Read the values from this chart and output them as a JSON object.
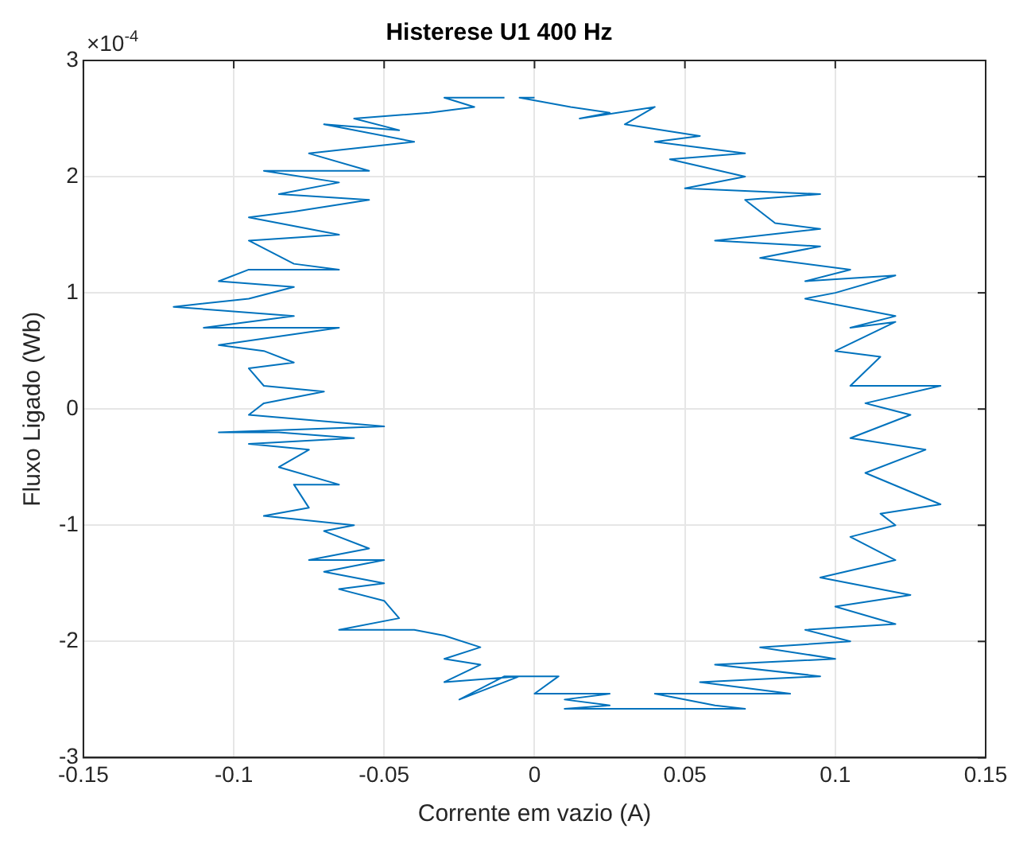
{
  "chart_data": {
    "type": "line",
    "legend": false,
    "title": "Histerese U1 400 Hz",
    "xlabel": "Corrente em vazio (A)",
    "ylabel": "Fluxo Ligado (Wb)",
    "annotations": [
      "×10$^{-4}$"
    ],
    "x": [
      0,
      -0.005,
      0.012,
      0.025,
      0.015,
      0.04,
      0.03,
      0.055,
      0.04,
      0.07,
      0.045,
      0.07,
      0.05,
      0.095,
      0.07,
      0.08,
      0.095,
      0.06,
      0.095,
      0.075,
      0.105,
      0.09,
      0.12,
      0.1,
      0.09,
      0.12,
      0.105,
      0.12,
      0.1,
      0.115,
      0.105,
      0.135,
      0.11,
      0.125,
      0.105,
      0.13,
      0.11,
      0.135,
      0.115,
      0.12,
      0.105,
      0.12,
      0.095,
      0.125,
      0.1,
      0.12,
      0.09,
      0.105,
      0.075,
      0.1,
      0.06,
      0.095,
      0.055,
      0.085,
      0.04,
      0.06,
      0.07,
      0.01,
      0.025,
      0.01,
      0.025,
      0,
      0.008,
      -0.01,
      -0.025,
      -0.005,
      -0.03,
      -0.018,
      -0.03,
      -0.018,
      -0.03,
      -0.04,
      -0.065,
      -0.045,
      -0.05,
      -0.065,
      -0.05,
      -0.07,
      -0.05,
      -0.075,
      -0.055,
      -0.07,
      -0.06,
      -0.09,
      -0.075,
      -0.08,
      -0.065,
      -0.085,
      -0.075,
      -0.095,
      -0.06,
      -0.085,
      -0.105,
      -0.05,
      -0.095,
      -0.09,
      -0.07,
      -0.09,
      -0.095,
      -0.08,
      -0.09,
      -0.105,
      -0.065,
      -0.11,
      -0.08,
      -0.12,
      -0.095,
      -0.08,
      -0.105,
      -0.095,
      -0.065,
      -0.08,
      -0.095,
      -0.065,
      -0.095,
      -0.08,
      -0.055,
      -0.085,
      -0.065,
      -0.09,
      -0.055,
      -0.075,
      -0.04,
      -0.07,
      -0.045,
      -0.06,
      -0.035,
      -0.02,
      -0.03,
      -0.01
    ],
    "series": [
      {
        "color": "#0072bd",
        "values": [
          2.68,
          2.68,
          2.6,
          2.55,
          2.5,
          2.6,
          2.45,
          2.35,
          2.3,
          2.2,
          2.15,
          2.0,
          1.9,
          1.85,
          1.8,
          1.6,
          1.55,
          1.45,
          1.4,
          1.3,
          1.2,
          1.1,
          1.15,
          1.0,
          0.95,
          0.8,
          0.7,
          0.75,
          0.5,
          0.45,
          0.2,
          0.2,
          0.05,
          -0.05,
          -0.25,
          -0.35,
          -0.55,
          -0.82,
          -0.9,
          -1.0,
          -1.1,
          -1.3,
          -1.45,
          -1.6,
          -1.7,
          -1.85,
          -1.9,
          -2.0,
          -2.05,
          -2.15,
          -2.2,
          -2.3,
          -2.35,
          -2.45,
          -2.45,
          -2.55,
          -2.58,
          -2.58,
          -2.55,
          -2.5,
          -2.45,
          -2.45,
          -2.3,
          -2.3,
          -2.5,
          -2.3,
          -2.35,
          -2.2,
          -2.15,
          -2.05,
          -1.95,
          -1.9,
          -1.9,
          -1.8,
          -1.65,
          -1.55,
          -1.5,
          -1.4,
          -1.3,
          -1.3,
          -1.2,
          -1.05,
          -1.0,
          -0.92,
          -0.85,
          -0.65,
          -0.65,
          -0.5,
          -0.35,
          -0.3,
          -0.25,
          -0.2,
          -0.2,
          -0.15,
          -0.05,
          0.05,
          0.15,
          0.2,
          0.35,
          0.4,
          0.5,
          0.55,
          0.7,
          0.7,
          0.8,
          0.88,
          0.95,
          1.05,
          1.1,
          1.2,
          1.2,
          1.25,
          1.45,
          1.5,
          1.65,
          1.7,
          1.8,
          1.85,
          1.95,
          2.05,
          2.05,
          2.2,
          2.3,
          2.45,
          2.4,
          2.5,
          2.55,
          2.6,
          2.68,
          2.68
        ]
      }
    ],
    "xlim": [
      -0.15,
      0.15
    ],
    "xticks": [
      -0.15,
      -0.1,
      -0.05,
      0,
      0.05,
      0.1,
      0.15
    ],
    "ylim": [
      -3,
      3
    ],
    "yticks": [
      -3,
      -2,
      -1,
      0,
      1,
      2,
      3
    ],
    "grid": true,
    "marker": "none",
    "line_style": "solid"
  }
}
